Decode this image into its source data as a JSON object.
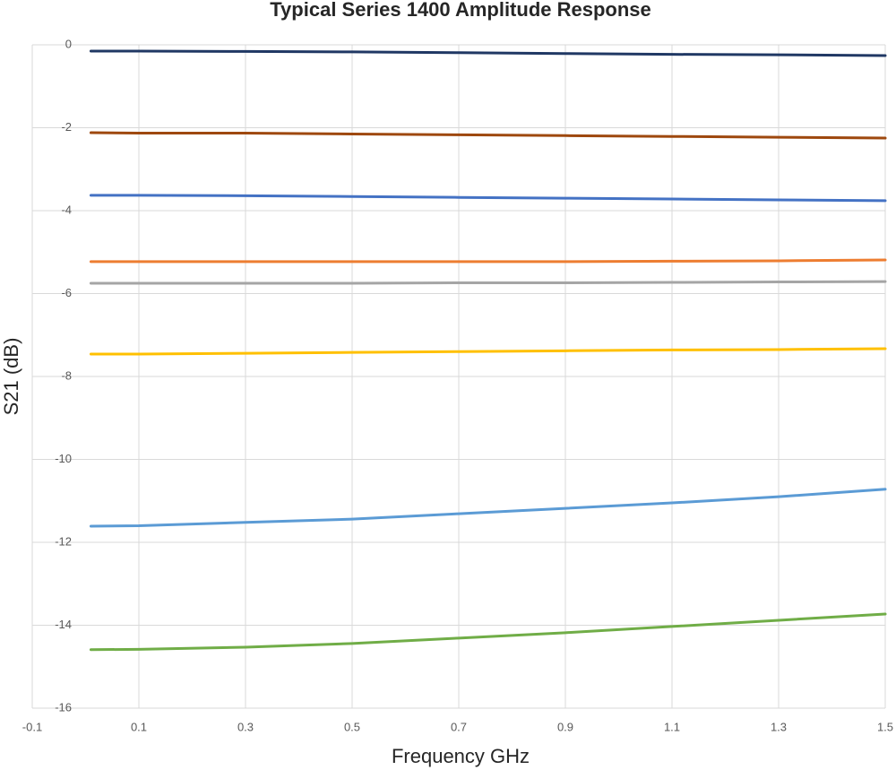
{
  "chart_data": {
    "type": "line",
    "title": "Typical Series 1400 Amplitude Response",
    "x_label": "Frequency GHz",
    "y_label": "S21 (dB)",
    "x": [
      0.01,
      0.1,
      0.3,
      0.5,
      0.7,
      0.9,
      1.1,
      1.3,
      1.5
    ],
    "series": [
      {
        "color": "#203864",
        "values": [
          -0.15,
          -0.15,
          -0.16,
          -0.17,
          -0.19,
          -0.21,
          -0.23,
          -0.24,
          -0.26
        ]
      },
      {
        "color": "#9e480e",
        "values": [
          -2.12,
          -2.13,
          -2.13,
          -2.15,
          -2.17,
          -2.19,
          -2.21,
          -2.23,
          -2.25
        ]
      },
      {
        "color": "#4472c4",
        "values": [
          -3.63,
          -3.63,
          -3.64,
          -3.66,
          -3.68,
          -3.7,
          -3.72,
          -3.74,
          -3.76
        ]
      },
      {
        "color": "#ed7d31",
        "values": [
          -5.23,
          -5.23,
          -5.23,
          -5.23,
          -5.23,
          -5.23,
          -5.22,
          -5.21,
          -5.19
        ]
      },
      {
        "color": "#a5a5a5",
        "values": [
          -5.75,
          -5.75,
          -5.75,
          -5.75,
          -5.74,
          -5.74,
          -5.73,
          -5.72,
          -5.71
        ]
      },
      {
        "color": "#ffc000",
        "values": [
          -7.46,
          -7.46,
          -7.44,
          -7.42,
          -7.4,
          -7.38,
          -7.36,
          -7.35,
          -7.33
        ]
      },
      {
        "color": "#5b9bd5",
        "values": [
          -11.61,
          -11.6,
          -11.52,
          -11.44,
          -11.31,
          -11.18,
          -11.05,
          -10.9,
          -10.72
        ]
      },
      {
        "color": "#70ad47",
        "values": [
          -14.59,
          -14.58,
          -14.53,
          -14.44,
          -14.31,
          -14.18,
          -14.03,
          -13.88,
          -13.73
        ]
      }
    ],
    "xlim": [
      -0.1,
      1.5
    ],
    "xticks": [
      -0.1,
      0.1,
      0.3,
      0.5,
      0.7,
      0.9,
      1.1,
      1.3,
      1.5
    ],
    "ylim": [
      -16,
      0
    ],
    "yticks": [
      0,
      -2,
      -4,
      -6,
      -8,
      -10,
      -12,
      -14,
      -16
    ],
    "grid": true
  }
}
